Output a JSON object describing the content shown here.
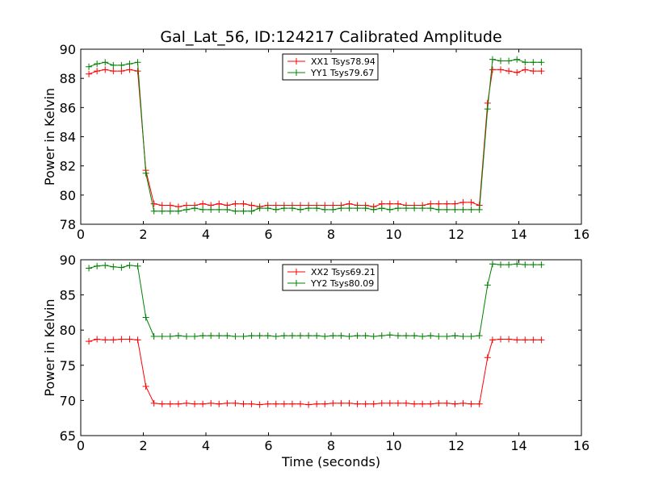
{
  "title": "Gal_Lat_56, ID:124217 Calibrated Amplitude",
  "xlabel": "Time (seconds)",
  "colors": {
    "xx": "#ff0000",
    "yy": "#008000"
  },
  "chart_data": [
    {
      "type": "line",
      "title": "Gal_Lat_56, ID:124217 Calibrated Amplitude",
      "ylabel": "Power in Kelvin",
      "xlabel": "",
      "xlim": [
        0,
        16
      ],
      "ylim": [
        78,
        90
      ],
      "xticks": [
        0,
        2,
        4,
        6,
        8,
        10,
        12,
        14,
        16
      ],
      "yticks": [
        78,
        80,
        82,
        84,
        86,
        88,
        90
      ],
      "grid": false,
      "legend_position": "top-center",
      "x": [
        0.26,
        0.52,
        0.78,
        1.04,
        1.3,
        1.56,
        1.82,
        2.08,
        2.34,
        2.6,
        2.86,
        3.12,
        3.38,
        3.64,
        3.9,
        4.16,
        4.42,
        4.68,
        4.94,
        5.2,
        5.46,
        5.72,
        5.98,
        6.24,
        6.5,
        6.76,
        7.02,
        7.28,
        7.54,
        7.8,
        8.06,
        8.32,
        8.58,
        8.84,
        9.1,
        9.36,
        9.62,
        9.88,
        10.14,
        10.4,
        10.66,
        10.92,
        11.18,
        11.44,
        11.7,
        11.96,
        12.22,
        12.48,
        12.74,
        13.0,
        13.16,
        13.42,
        13.68,
        13.94,
        14.2,
        14.46,
        14.72
      ],
      "series": [
        {
          "name": "XX1 Tsys78.94",
          "color": "#ff0000",
          "values": [
            88.3,
            88.5,
            88.6,
            88.5,
            88.5,
            88.6,
            88.5,
            81.7,
            79.4,
            79.3,
            79.3,
            79.2,
            79.3,
            79.3,
            79.4,
            79.3,
            79.4,
            79.3,
            79.4,
            79.4,
            79.3,
            79.2,
            79.3,
            79.3,
            79.3,
            79.3,
            79.3,
            79.3,
            79.3,
            79.3,
            79.3,
            79.3,
            79.4,
            79.3,
            79.3,
            79.2,
            79.4,
            79.4,
            79.4,
            79.3,
            79.3,
            79.3,
            79.4,
            79.4,
            79.4,
            79.4,
            79.5,
            79.5,
            79.3,
            86.3,
            88.6,
            88.6,
            88.5,
            88.4,
            88.6,
            88.5,
            88.5
          ]
        },
        {
          "name": "YY1 Tsys79.67",
          "color": "#008000",
          "values": [
            88.8,
            89.0,
            89.1,
            88.9,
            88.9,
            89.0,
            89.1,
            81.5,
            78.9,
            78.9,
            78.9,
            78.9,
            79.0,
            79.1,
            79.0,
            79.0,
            79.0,
            79.0,
            78.9,
            78.9,
            78.9,
            79.1,
            79.1,
            79.0,
            79.1,
            79.1,
            79.0,
            79.1,
            79.1,
            79.0,
            79.0,
            79.1,
            79.1,
            79.1,
            79.1,
            79.0,
            79.1,
            79.0,
            79.1,
            79.1,
            79.1,
            79.1,
            79.1,
            79.0,
            79.0,
            79.0,
            79.0,
            79.0,
            79.0,
            85.9,
            89.3,
            89.2,
            89.2,
            89.3,
            89.1,
            89.1,
            89.1
          ]
        }
      ]
    },
    {
      "type": "line",
      "title": "",
      "ylabel": "Power in Kelvin",
      "xlabel": "Time (seconds)",
      "xlim": [
        0,
        16
      ],
      "ylim": [
        65,
        90
      ],
      "xticks": [
        0,
        2,
        4,
        6,
        8,
        10,
        12,
        14,
        16
      ],
      "yticks": [
        65,
        70,
        75,
        80,
        85,
        90
      ],
      "grid": false,
      "legend_position": "top-center",
      "x": [
        0.26,
        0.52,
        0.78,
        1.04,
        1.3,
        1.56,
        1.82,
        2.08,
        2.34,
        2.6,
        2.86,
        3.12,
        3.38,
        3.64,
        3.9,
        4.16,
        4.42,
        4.68,
        4.94,
        5.2,
        5.46,
        5.72,
        5.98,
        6.24,
        6.5,
        6.76,
        7.02,
        7.28,
        7.54,
        7.8,
        8.06,
        8.32,
        8.58,
        8.84,
        9.1,
        9.36,
        9.62,
        9.88,
        10.14,
        10.4,
        10.66,
        10.92,
        11.18,
        11.44,
        11.7,
        11.96,
        12.22,
        12.48,
        12.74,
        13.0,
        13.16,
        13.42,
        13.68,
        13.94,
        14.2,
        14.46,
        14.72
      ],
      "series": [
        {
          "name": "XX2 Tsys69.21",
          "color": "#ff0000",
          "values": [
            78.4,
            78.7,
            78.6,
            78.6,
            78.7,
            78.7,
            78.6,
            72.0,
            69.6,
            69.5,
            69.5,
            69.5,
            69.6,
            69.5,
            69.5,
            69.6,
            69.5,
            69.6,
            69.6,
            69.5,
            69.5,
            69.4,
            69.5,
            69.5,
            69.5,
            69.5,
            69.5,
            69.4,
            69.5,
            69.5,
            69.6,
            69.6,
            69.6,
            69.5,
            69.5,
            69.5,
            69.6,
            69.6,
            69.6,
            69.6,
            69.5,
            69.5,
            69.5,
            69.6,
            69.6,
            69.5,
            69.6,
            69.5,
            69.5,
            76.1,
            78.6,
            78.7,
            78.7,
            78.6,
            78.6,
            78.6,
            78.6
          ]
        },
        {
          "name": "YY2 Tsys80.09",
          "color": "#008000",
          "values": [
            88.8,
            89.1,
            89.2,
            89.0,
            88.9,
            89.2,
            89.1,
            81.8,
            79.1,
            79.1,
            79.1,
            79.2,
            79.1,
            79.1,
            79.2,
            79.2,
            79.2,
            79.2,
            79.1,
            79.1,
            79.2,
            79.2,
            79.2,
            79.1,
            79.2,
            79.2,
            79.2,
            79.2,
            79.2,
            79.1,
            79.2,
            79.2,
            79.1,
            79.2,
            79.2,
            79.1,
            79.2,
            79.3,
            79.2,
            79.2,
            79.2,
            79.1,
            79.2,
            79.1,
            79.1,
            79.2,
            79.1,
            79.1,
            79.2,
            86.4,
            89.4,
            89.3,
            89.3,
            89.4,
            89.3,
            89.3,
            89.3
          ]
        }
      ]
    }
  ]
}
